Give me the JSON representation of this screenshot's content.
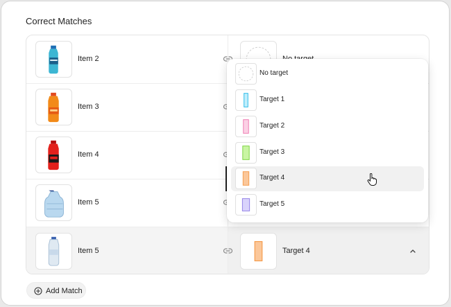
{
  "section": {
    "title": "Correct Matches"
  },
  "rows": [
    {
      "item": "Item 2",
      "target": "No target"
    },
    {
      "item": "Item 3",
      "target": ""
    },
    {
      "item": "Item 4",
      "target": ""
    },
    {
      "item": "Item 5",
      "target": ""
    },
    {
      "item": "Item 5",
      "target": "Target 4"
    }
  ],
  "dropdown": {
    "options": [
      {
        "label": "No target"
      },
      {
        "label": "Target 1",
        "color": "#22b8e8"
      },
      {
        "label": "Target 2",
        "color": "#ee77b0"
      },
      {
        "label": "Target 3",
        "color": "#77d23a"
      },
      {
        "label": "Target 4",
        "color": "#f59a4a"
      },
      {
        "label": "Target 5",
        "color": "#8f7de6"
      }
    ],
    "hovered": "Target 4"
  },
  "add_button": {
    "label": "Add Match"
  },
  "icons": {
    "link": "link-icon",
    "chevron": "chevron-up-icon",
    "plus": "plus-circle-icon",
    "cursor": "hand-pointer-icon"
  }
}
